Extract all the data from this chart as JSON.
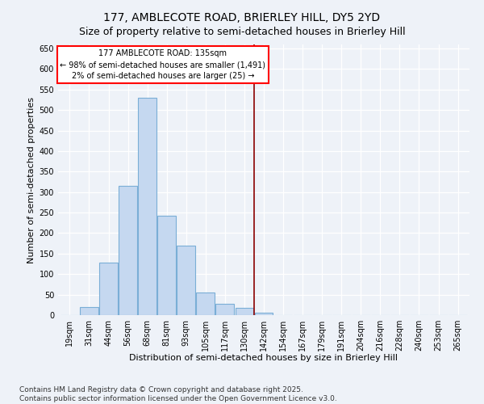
{
  "title": "177, AMBLECOTE ROAD, BRIERLEY HILL, DY5 2YD",
  "subtitle": "Size of property relative to semi-detached houses in Brierley Hill",
  "xlabel": "Distribution of semi-detached houses by size in Brierley Hill",
  "ylabel": "Number of semi-detached properties",
  "categories": [
    "19sqm",
    "31sqm",
    "44sqm",
    "56sqm",
    "68sqm",
    "81sqm",
    "93sqm",
    "105sqm",
    "117sqm",
    "130sqm",
    "142sqm",
    "154sqm",
    "167sqm",
    "179sqm",
    "191sqm",
    "204sqm",
    "216sqm",
    "228sqm",
    "240sqm",
    "253sqm",
    "265sqm"
  ],
  "values": [
    0,
    20,
    128,
    315,
    530,
    242,
    170,
    55,
    28,
    18,
    5,
    0,
    0,
    0,
    0,
    0,
    0,
    0,
    0,
    0,
    0
  ],
  "bar_color": "#c5d8f0",
  "bar_edge_color": "#7aaed6",
  "property_line_x": 9.5,
  "ylim": [
    0,
    660
  ],
  "yticks": [
    0,
    50,
    100,
    150,
    200,
    250,
    300,
    350,
    400,
    450,
    500,
    550,
    600,
    650
  ],
  "annotation_title": "177 AMBLECOTE ROAD: 135sqm",
  "annotation_line1": "← 98% of semi-detached houses are smaller (1,491)",
  "annotation_line2": "2% of semi-detached houses are larger (25) →",
  "footer1": "Contains HM Land Registry data © Crown copyright and database right 2025.",
  "footer2": "Contains public sector information licensed under the Open Government Licence v3.0.",
  "bg_color": "#eef2f8",
  "grid_color": "#ffffff",
  "title_fontsize": 10,
  "subtitle_fontsize": 9,
  "ylabel_fontsize": 8,
  "xlabel_fontsize": 8,
  "tick_fontsize": 7,
  "annot_fontsize": 7,
  "footer_fontsize": 6.5
}
